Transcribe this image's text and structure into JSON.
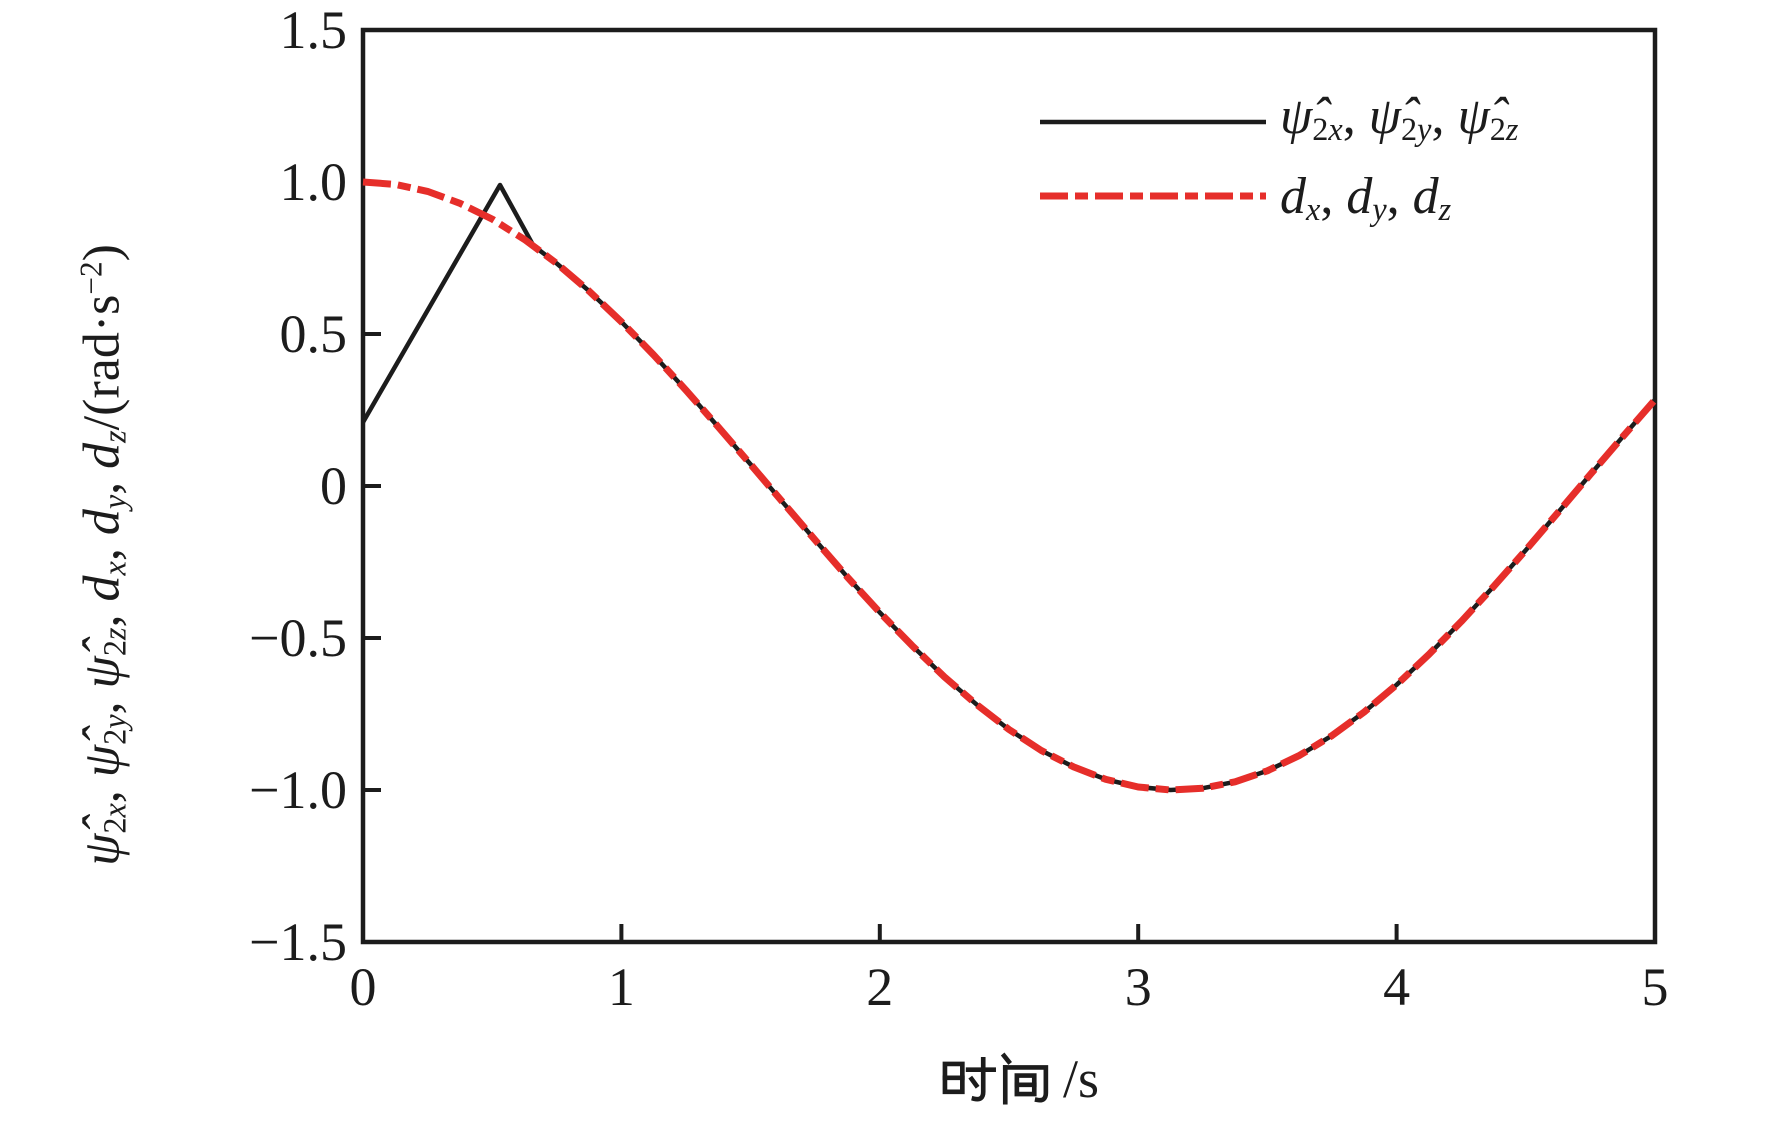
{
  "chart_data": {
    "type": "line",
    "title": "",
    "xlabel": "时间/s",
    "ylabel": "ψ̂2x, ψ̂2y, ψ̂2z, dx, dy, dz/(rad·s−2)",
    "xlim": [
      0,
      5
    ],
    "ylim": [
      -1.5,
      1.5
    ],
    "grid": false,
    "legend_position": "upper right",
    "xticks": {
      "values": [
        0,
        1,
        2,
        3,
        4,
        5
      ],
      "labels": [
        "0",
        "1",
        "2",
        "3",
        "4",
        "5"
      ]
    },
    "yticks": {
      "values": [
        1.5,
        1.0,
        0.5,
        0,
        -0.5,
        -1.0,
        -1.5
      ],
      "labels": [
        "1.5",
        "1.0",
        "0.5",
        "0",
        "−0.5",
        "−1.0",
        "−1.5"
      ]
    },
    "inner_yticks": [
      1.0,
      0.5,
      0,
      -0.5,
      -1.0
    ],
    "inner_xticks": [
      1,
      2,
      3,
      4
    ],
    "series": [
      {
        "name": "ψ̂2x, ψ̂2y, ψ̂2z",
        "color": "#1c1c1c",
        "style": "solid",
        "width": 4.5,
        "points": [
          [
            0,
            0.21
          ],
          [
            0.53,
            0.99
          ],
          [
            0.66,
            0.79
          ],
          [
            0.75,
            0.732
          ],
          [
            0.875,
            0.641
          ],
          [
            1,
            0.54
          ],
          [
            1.125,
            0.431
          ],
          [
            1.25,
            0.315
          ],
          [
            1.375,
            0.194
          ],
          [
            1.5,
            0.071
          ],
          [
            1.625,
            -0.054
          ],
          [
            1.75,
            -0.178
          ],
          [
            1.875,
            -0.3
          ],
          [
            2,
            -0.416
          ],
          [
            2.125,
            -0.525
          ],
          [
            2.25,
            -0.628
          ],
          [
            2.375,
            -0.719
          ],
          [
            2.5,
            -0.801
          ],
          [
            2.625,
            -0.87
          ],
          [
            2.75,
            -0.924
          ],
          [
            2.875,
            -0.965
          ],
          [
            3,
            -0.99
          ],
          [
            3.125,
            -1.0
          ],
          [
            3.25,
            -0.994
          ],
          [
            3.375,
            -0.973
          ],
          [
            3.5,
            -0.937
          ],
          [
            3.625,
            -0.886
          ],
          [
            3.75,
            -0.821
          ],
          [
            3.875,
            -0.743
          ],
          [
            4,
            -0.654
          ],
          [
            4.125,
            -0.554
          ],
          [
            4.25,
            -0.446
          ],
          [
            4.375,
            -0.331
          ],
          [
            4.5,
            -0.211
          ],
          [
            4.625,
            -0.087
          ],
          [
            4.75,
            0.038
          ],
          [
            4.875,
            0.162
          ],
          [
            5,
            0.284
          ]
        ]
      },
      {
        "name": "dx, dy, dz",
        "color": "#e62e2a",
        "style": "dash-dot",
        "width": 7,
        "dash": [
          28,
          7,
          13,
          7
        ],
        "points": [
          [
            0,
            1.0
          ],
          [
            0.125,
            0.992
          ],
          [
            0.25,
            0.969
          ],
          [
            0.375,
            0.93
          ],
          [
            0.5,
            0.878
          ],
          [
            0.625,
            0.811
          ],
          [
            0.75,
            0.732
          ],
          [
            0.875,
            0.641
          ],
          [
            1,
            0.54
          ],
          [
            1.125,
            0.431
          ],
          [
            1.25,
            0.315
          ],
          [
            1.375,
            0.194
          ],
          [
            1.5,
            0.071
          ],
          [
            1.625,
            -0.054
          ],
          [
            1.75,
            -0.178
          ],
          [
            1.875,
            -0.3
          ],
          [
            2,
            -0.416
          ],
          [
            2.125,
            -0.525
          ],
          [
            2.25,
            -0.628
          ],
          [
            2.375,
            -0.719
          ],
          [
            2.5,
            -0.801
          ],
          [
            2.625,
            -0.87
          ],
          [
            2.75,
            -0.924
          ],
          [
            2.875,
            -0.965
          ],
          [
            3,
            -0.99
          ],
          [
            3.125,
            -1.0
          ],
          [
            3.25,
            -0.994
          ],
          [
            3.375,
            -0.973
          ],
          [
            3.5,
            -0.937
          ],
          [
            3.625,
            -0.886
          ],
          [
            3.75,
            -0.821
          ],
          [
            3.875,
            -0.743
          ],
          [
            4,
            -0.654
          ],
          [
            4.125,
            -0.554
          ],
          [
            4.25,
            -0.446
          ],
          [
            4.375,
            -0.331
          ],
          [
            4.5,
            -0.211
          ],
          [
            4.625,
            -0.087
          ],
          [
            4.75,
            0.038
          ],
          [
            4.875,
            0.162
          ],
          [
            5,
            0.284
          ]
        ]
      }
    ]
  },
  "legend": {
    "entries": [
      {
        "name": "ψ̂2x, ψ̂2y, ψ̂2z",
        "parts": [
          {
            "base": "ψ̂",
            "subNum": "2",
            "subVar": "x",
            "tail": ", "
          },
          {
            "base": "ψ̂",
            "subNum": "2",
            "subVar": "y",
            "tail": ", "
          },
          {
            "base": "ψ̂",
            "subNum": "2",
            "subVar": "z",
            "tail": ""
          }
        ]
      },
      {
        "name": "dx, dy, dz",
        "parts": [
          {
            "base": "d",
            "subVar": "x",
            "tail": ", "
          },
          {
            "base": "d",
            "subVar": "y",
            "tail": ", "
          },
          {
            "base": "d",
            "subVar": "z",
            "tail": ""
          }
        ]
      }
    ]
  },
  "ylabel": {
    "parts": [
      {
        "base": "ψ̂",
        "subNum": "2",
        "subVar": "x",
        "tail": ", "
      },
      {
        "base": "ψ̂",
        "subNum": "2",
        "subVar": "y",
        "tail": ", "
      },
      {
        "base": "ψ̂",
        "subNum": "2",
        "subVar": "z",
        "tail": ", "
      },
      {
        "base": "d",
        "subVar": "x",
        "tail": ", "
      },
      {
        "base": "d",
        "subVar": "y",
        "tail": ", "
      },
      {
        "base": "d",
        "subVar": "z",
        "tail": "/(rad·s",
        "sup": "−2",
        "tail2": ")"
      }
    ]
  },
  "labels": {
    "xlabel_cjk": "时间",
    "xlabel_suffix": "/s"
  }
}
